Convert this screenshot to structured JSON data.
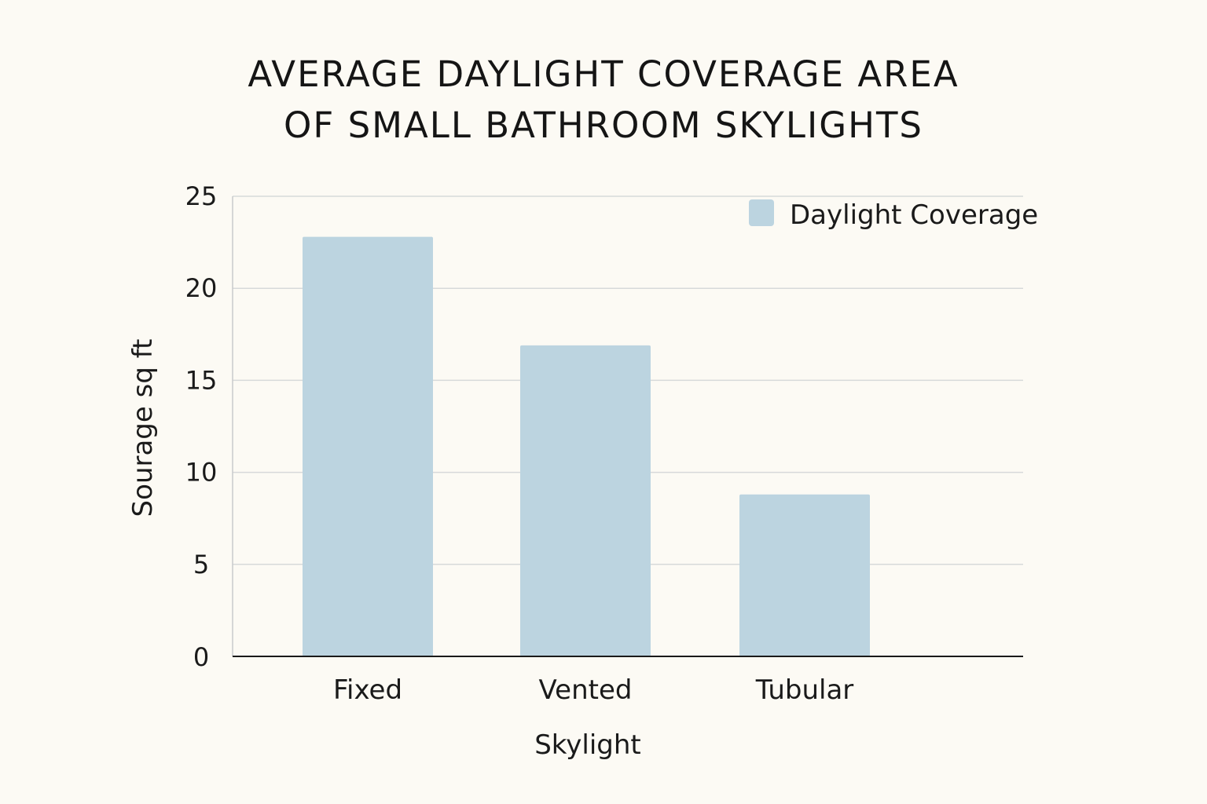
{
  "chart_data": {
    "type": "bar",
    "title_lines": [
      "AVERAGE DAYLIGHT COVERAGE AREA",
      "OF SMALL BATHROOM SKYLIGHTS"
    ],
    "categories": [
      "Fixed",
      "Vented",
      "Tubular"
    ],
    "series": [
      {
        "name": "Daylight Coverage",
        "values": [
          22.8,
          16.9,
          8.8
        ],
        "color": "#bcd4e0"
      }
    ],
    "xlabel": "Skylight",
    "ylabel": "Sourage sq ft",
    "ylim": [
      0,
      25
    ],
    "yticks": [
      0,
      5,
      10,
      15,
      20,
      25
    ],
    "grid": true,
    "legend_position": "top-right"
  }
}
